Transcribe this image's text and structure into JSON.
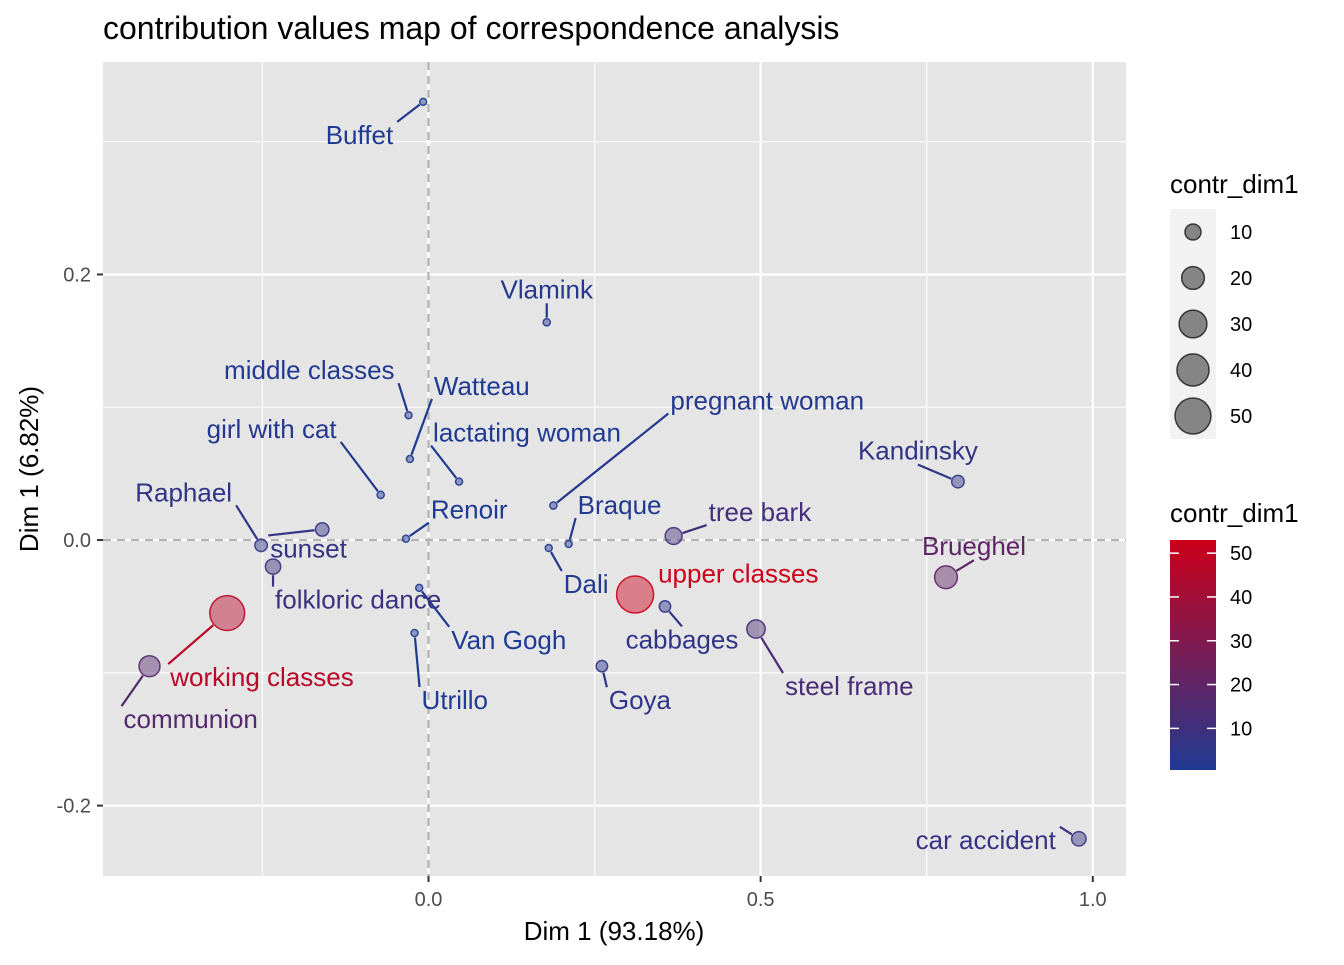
{
  "chart_data": {
    "type": "scatter",
    "title": "contribution values map of correspondence analysis",
    "xlabel": "Dim 1 (93.18%)",
    "ylabel": "Dim 1 (6.82%)",
    "xlim": [
      -0.49,
      1.05
    ],
    "ylim": [
      -0.253,
      0.36
    ],
    "x_ticks": [
      {
        "value": 0.0,
        "label": "0.0"
      },
      {
        "value": 0.5,
        "label": "0.5"
      },
      {
        "value": 1.0,
        "label": "1.0"
      }
    ],
    "y_ticks": [
      {
        "value": 0.2,
        "label": "0.2"
      },
      {
        "value": 0.0,
        "label": "0.0"
      },
      {
        "value": -0.2,
        "label": "-0.2"
      }
    ],
    "grid": true,
    "reference_lines": {
      "x": 0,
      "y": 0
    },
    "legend_position": "right",
    "size_legend": {
      "title": "contr_dim1",
      "values": [
        10,
        20,
        30,
        40,
        50
      ],
      "labels": [
        "10",
        "20",
        "30",
        "40",
        "50"
      ]
    },
    "color_legend": {
      "title": "contr_dim1",
      "low_color": "#1f3a93",
      "high_color": "#cc0019",
      "min": 0.5,
      "max": 53,
      "breaks": [
        10,
        20,
        30,
        40,
        50
      ],
      "labels": [
        "10",
        "20",
        "30",
        "40",
        "50"
      ]
    },
    "points": [
      {
        "label": "Buffet",
        "x": -0.008,
        "y": 0.33,
        "contr": 0.5
      },
      {
        "label": "Vlamink",
        "x": 0.178,
        "y": 0.164,
        "contr": 2
      },
      {
        "label": "middle classes",
        "x": -0.03,
        "y": 0.094,
        "contr": 1.5
      },
      {
        "label": "Watteau",
        "x": -0.028,
        "y": 0.061,
        "contr": 0.5
      },
      {
        "label": "girl with cat",
        "x": -0.072,
        "y": 0.034,
        "contr": 2
      },
      {
        "label": "lactating woman",
        "x": 0.046,
        "y": 0.044,
        "contr": 0.5
      },
      {
        "label": "pregnant woman",
        "x": 0.188,
        "y": 0.026,
        "contr": 2
      },
      {
        "label": "Kandinsky",
        "x": 0.797,
        "y": 0.044,
        "contr": 6
      },
      {
        "label": "Raphael",
        "x": -0.252,
        "y": -0.004,
        "contr": 6
      },
      {
        "label": "sunset",
        "x": -0.16,
        "y": 0.008,
        "contr": 7
      },
      {
        "label": "Renoir",
        "x": -0.034,
        "y": 0.001,
        "contr": 0.5
      },
      {
        "label": "Braque",
        "x": 0.211,
        "y": -0.003,
        "contr": 1.5
      },
      {
        "label": "Dali",
        "x": 0.181,
        "y": -0.006,
        "contr": 1.5
      },
      {
        "label": "tree bark",
        "x": 0.369,
        "y": 0.003,
        "contr": 11
      },
      {
        "label": "Brueghel",
        "x": 0.779,
        "y": -0.028,
        "contr": 20
      },
      {
        "label": "folkloric dance",
        "x": -0.234,
        "y": -0.02,
        "contr": 9
      },
      {
        "label": "upper classes",
        "x": 0.311,
        "y": -0.041,
        "contr": 53
      },
      {
        "label": "Van Gogh",
        "x": -0.014,
        "y": -0.036,
        "contr": 0.5
      },
      {
        "label": "working classes",
        "x": -0.303,
        "y": -0.055,
        "contr": 47
      },
      {
        "label": "cabbages",
        "x": 0.356,
        "y": -0.05,
        "contr": 5
      },
      {
        "label": "steel frame",
        "x": 0.493,
        "y": -0.067,
        "contr": 13
      },
      {
        "label": "Utrillo",
        "x": -0.021,
        "y": -0.07,
        "contr": 0.5
      },
      {
        "label": "communion",
        "x": -0.42,
        "y": -0.095,
        "contr": 17
      },
      {
        "label": "Goya",
        "x": 0.261,
        "y": -0.095,
        "contr": 5
      },
      {
        "label": "car accident",
        "x": 0.979,
        "y": -0.225,
        "contr": 8
      }
    ]
  }
}
